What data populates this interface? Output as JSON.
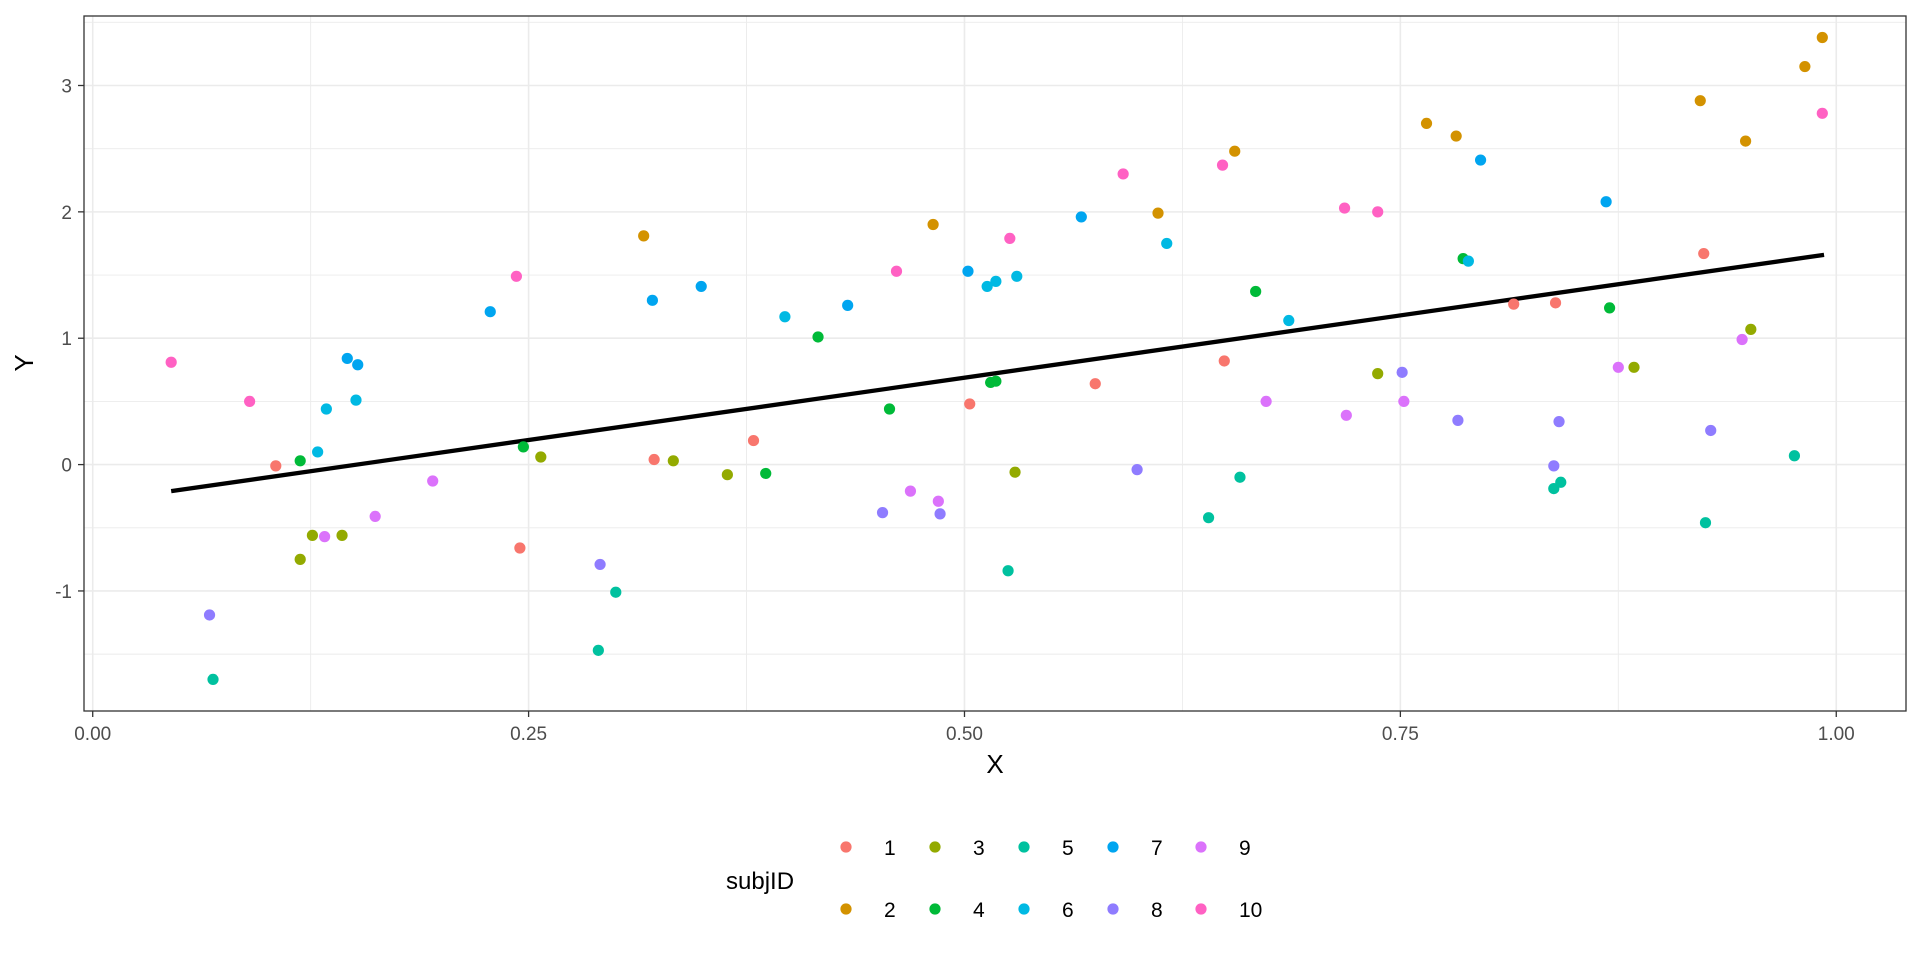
{
  "chart_data": {
    "type": "scatter",
    "xlabel": "X",
    "ylabel": "Y",
    "xlim": [
      -0.005,
      1.04
    ],
    "ylim": [
      -1.95,
      3.55
    ],
    "x_ticks": [
      0,
      0.25,
      0.5,
      0.75,
      1
    ],
    "x_tick_labels": [
      "0.00",
      "0.25",
      "0.50",
      "0.75",
      "1.00"
    ],
    "y_ticks": [
      -1,
      0,
      1,
      2,
      3
    ],
    "y_tick_labels": [
      "-1",
      "0",
      "1",
      "2",
      "3"
    ],
    "grid": true,
    "legend": {
      "title": "subjID",
      "position": "bottom"
    },
    "regression_line": {
      "x": [
        0.045,
        0.993
      ],
      "y": [
        -0.21,
        1.66
      ],
      "color": "#000000"
    },
    "series": [
      {
        "name": "1",
        "color": "#F8766D",
        "points": [
          [
            0.105,
            -0.01
          ],
          [
            0.245,
            -0.66
          ],
          [
            0.322,
            0.04
          ],
          [
            0.379,
            0.19
          ],
          [
            0.503,
            0.48
          ],
          [
            0.575,
            0.64
          ],
          [
            0.649,
            0.82
          ],
          [
            0.815,
            1.27
          ],
          [
            0.839,
            1.28
          ],
          [
            0.924,
            1.67
          ]
        ]
      },
      {
        "name": "2",
        "color": "#D39200",
        "points": [
          [
            0.316,
            1.81
          ],
          [
            0.482,
            1.9
          ],
          [
            0.611,
            1.99
          ],
          [
            0.655,
            2.48
          ],
          [
            0.765,
            2.7
          ],
          [
            0.782,
            2.6
          ],
          [
            0.922,
            2.88
          ],
          [
            0.948,
            2.56
          ],
          [
            0.982,
            3.15
          ],
          [
            0.992,
            3.38
          ]
        ]
      },
      {
        "name": "3",
        "color": "#93AA00",
        "points": [
          [
            0.119,
            -0.75
          ],
          [
            0.126,
            -0.56
          ],
          [
            0.143,
            -0.56
          ],
          [
            0.257,
            0.06
          ],
          [
            0.333,
            0.03
          ],
          [
            0.364,
            -0.08
          ],
          [
            0.529,
            -0.06
          ],
          [
            0.737,
            0.72
          ],
          [
            0.884,
            0.77
          ],
          [
            0.951,
            1.07
          ]
        ]
      },
      {
        "name": "4",
        "color": "#00BA38",
        "points": [
          [
            0.119,
            0.03
          ],
          [
            0.247,
            0.14
          ],
          [
            0.386,
            -0.07
          ],
          [
            0.416,
            1.01
          ],
          [
            0.457,
            0.44
          ],
          [
            0.515,
            0.65
          ],
          [
            0.518,
            0.66
          ],
          [
            0.667,
            1.37
          ],
          [
            0.786,
            1.63
          ],
          [
            0.87,
            1.24
          ]
        ]
      },
      {
        "name": "5",
        "color": "#00C19F",
        "points": [
          [
            0.069,
            -1.7
          ],
          [
            0.29,
            -1.47
          ],
          [
            0.3,
            -1.01
          ],
          [
            0.525,
            -0.84
          ],
          [
            0.64,
            -0.42
          ],
          [
            0.658,
            -0.1
          ],
          [
            0.838,
            -0.19
          ],
          [
            0.842,
            -0.14
          ],
          [
            0.925,
            -0.46
          ],
          [
            0.976,
            0.07
          ]
        ]
      },
      {
        "name": "6",
        "color": "#00B9E3",
        "points": [
          [
            0.129,
            0.1
          ],
          [
            0.134,
            0.44
          ],
          [
            0.151,
            0.51
          ],
          [
            0.397,
            1.17
          ],
          [
            0.513,
            1.41
          ],
          [
            0.518,
            1.45
          ],
          [
            0.53,
            1.49
          ],
          [
            0.616,
            1.75
          ],
          [
            0.686,
            1.14
          ],
          [
            0.789,
            1.61
          ]
        ]
      },
      {
        "name": "7",
        "color": "#00A5F0",
        "points": [
          [
            0.146,
            0.84
          ],
          [
            0.152,
            0.79
          ],
          [
            0.228,
            1.21
          ],
          [
            0.321,
            1.3
          ],
          [
            0.349,
            1.41
          ],
          [
            0.433,
            1.26
          ],
          [
            0.502,
            1.53
          ],
          [
            0.567,
            1.96
          ],
          [
            0.796,
            2.41
          ],
          [
            0.868,
            2.08
          ]
        ]
      },
      {
        "name": "8",
        "color": "#8F7CFF",
        "points": [
          [
            0.067,
            -1.19
          ],
          [
            0.291,
            -0.79
          ],
          [
            0.453,
            -0.38
          ],
          [
            0.486,
            -0.39
          ],
          [
            0.599,
            -0.04
          ],
          [
            0.751,
            0.73
          ],
          [
            0.783,
            0.35
          ],
          [
            0.838,
            -0.01
          ],
          [
            0.841,
            0.34
          ],
          [
            0.928,
            0.27
          ]
        ]
      },
      {
        "name": "9",
        "color": "#DB72FB",
        "points": [
          [
            0.133,
            -0.57
          ],
          [
            0.162,
            -0.41
          ],
          [
            0.195,
            -0.13
          ],
          [
            0.469,
            -0.21
          ],
          [
            0.485,
            -0.29
          ],
          [
            0.673,
            0.5
          ],
          [
            0.719,
            0.39
          ],
          [
            0.752,
            0.5
          ],
          [
            0.875,
            0.77
          ],
          [
            0.946,
            0.99
          ]
        ]
      },
      {
        "name": "10",
        "color": "#FF61C3",
        "points": [
          [
            0.045,
            0.81
          ],
          [
            0.09,
            0.5
          ],
          [
            0.243,
            1.49
          ],
          [
            0.461,
            1.53
          ],
          [
            0.526,
            1.79
          ],
          [
            0.591,
            2.3
          ],
          [
            0.648,
            2.37
          ],
          [
            0.718,
            2.03
          ],
          [
            0.737,
            2.0
          ],
          [
            0.992,
            2.78
          ]
        ]
      }
    ]
  }
}
